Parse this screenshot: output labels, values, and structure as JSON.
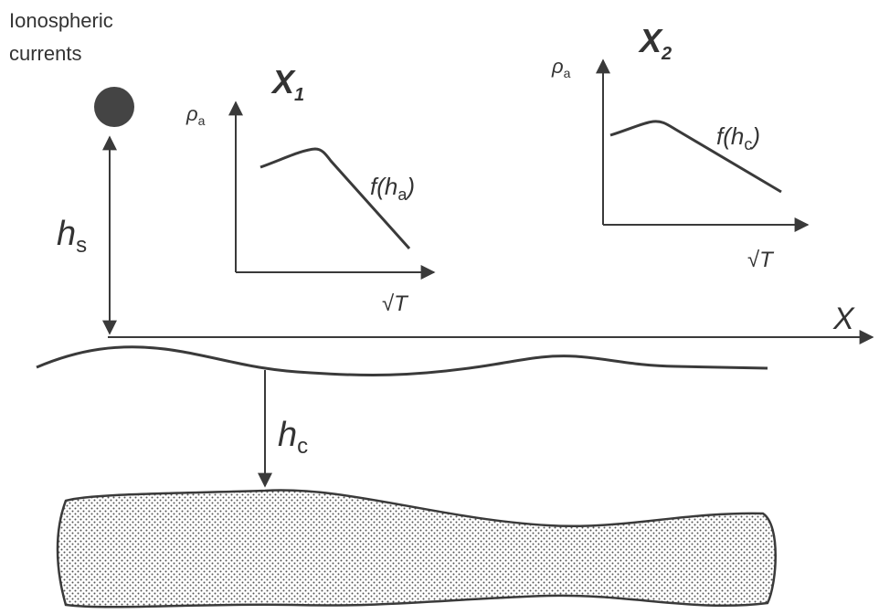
{
  "source": {
    "label_lines": [
      "Ionospheric",
      "currents"
    ]
  },
  "source_height": {
    "symbol": "h",
    "subscript": "s"
  },
  "profile_axis": "X",
  "conductor_depth": {
    "symbol": "h",
    "subscript": "c"
  },
  "panels": [
    {
      "station": {
        "symbol": "X",
        "subscript": "1"
      },
      "y_label": {
        "symbol": "ρ",
        "subscript": "a"
      },
      "curve_label": {
        "text": "f(h",
        "subscript": "a",
        "close": ")"
      },
      "x_label": "√T"
    },
    {
      "station": {
        "symbol": "X",
        "subscript": "2"
      },
      "y_label": {
        "symbol": "ρ",
        "subscript": "a"
      },
      "curve_label": {
        "text": "f(h",
        "subscript": "c",
        "close": ")"
      },
      "x_label": "√T"
    }
  ]
}
